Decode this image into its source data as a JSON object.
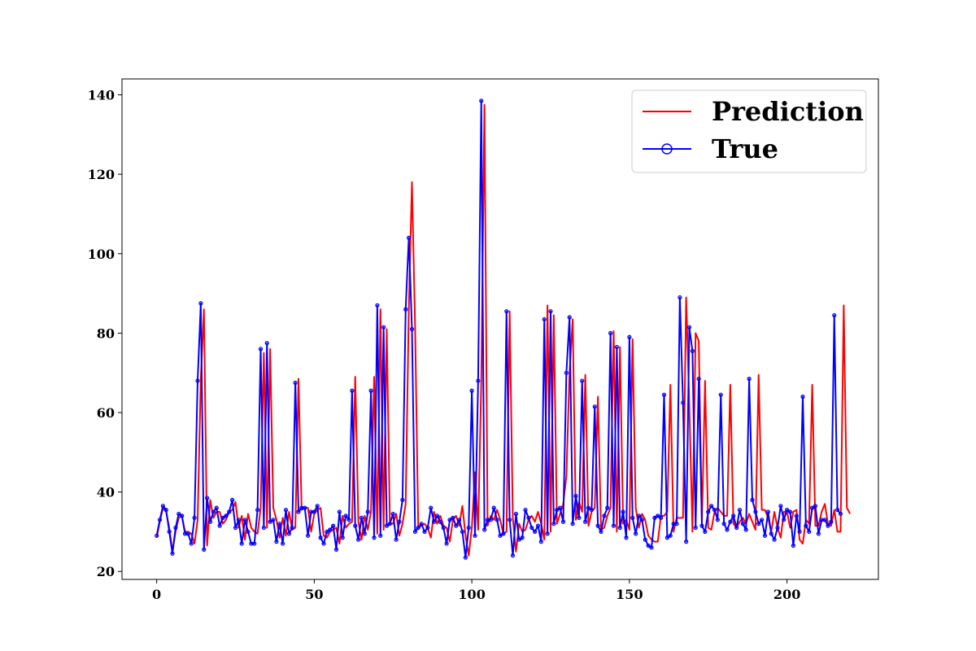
{
  "chart_data": {
    "type": "line",
    "title": "",
    "xlabel": "",
    "ylabel": "",
    "xlim": [
      -11,
      229
    ],
    "ylim": [
      18,
      144
    ],
    "grid": false,
    "legend_position": "top-right",
    "x_ticks": [
      0,
      50,
      100,
      150,
      200
    ],
    "y_ticks": [
      20,
      40,
      60,
      80,
      100,
      120,
      140
    ],
    "series": [
      {
        "name": "Prediction",
        "color": "#ff0000",
        "marker": "none",
        "x_start": 0,
        "values": [
          28.5,
          32.5,
          36,
          35,
          31,
          25,
          30,
          33.5,
          34,
          30,
          30,
          29.5,
          27,
          33,
          68.5,
          86,
          26.5,
          38,
          33.5,
          35,
          35,
          32,
          33,
          35,
          35.5,
          37.5,
          31,
          34,
          28,
          34.5,
          31,
          30,
          29.5,
          36,
          75,
          31,
          76,
          36,
          33,
          28.5,
          33.5,
          29,
          35,
          30.5,
          31,
          68.5,
          35.5,
          36,
          36,
          30,
          34.5,
          35.5,
          36,
          29,
          28.5,
          30,
          30.5,
          31,
          27,
          34,
          31,
          32,
          32.5,
          69,
          32.5,
          28,
          34,
          30.5,
          35,
          69,
          29.5,
          86,
          30.5,
          81,
          32,
          32,
          34.5,
          29,
          32,
          37,
          86,
          118,
          81.5,
          31,
          31.5,
          32,
          31,
          28.5,
          35,
          32,
          34,
          31.5,
          31,
          27.5,
          33,
          34,
          31.5,
          36.5,
          29,
          24,
          31,
          45,
          30.5,
          68,
          137.5,
          31.5,
          34,
          33,
          35.5,
          33,
          29.5,
          30,
          85.5,
          33.5,
          25,
          32,
          30,
          30.5,
          33,
          34,
          32.5,
          35,
          32,
          28,
          87,
          30,
          84.5,
          32,
          34.5,
          37,
          44,
          70,
          83.5,
          33,
          37.5,
          35,
          69.5,
          31.5,
          35,
          36,
          64,
          30.5,
          31,
          34,
          36,
          80.5,
          30,
          76.5,
          32,
          33,
          30.5,
          78.5,
          36,
          31,
          34.5,
          33,
          29,
          28,
          27.5,
          27.5,
          34,
          34,
          35,
          67,
          30,
          33.5,
          33.5,
          33.5,
          89,
          62,
          30,
          80,
          78,
          32,
          68,
          31,
          30.5,
          35,
          36,
          35,
          34,
          34,
          67,
          32,
          31,
          32.5,
          33.5,
          32,
          34.5,
          32.5,
          30.5,
          69.5,
          35.5,
          35.5,
          33.5,
          30,
          35,
          31,
          28.5,
          35,
          35,
          31,
          35,
          35.5,
          28,
          27,
          33,
          32,
          67,
          31.5,
          31.5,
          35,
          37,
          32,
          31.5,
          35.5,
          30,
          30,
          87,
          36,
          34.5
        ]
      },
      {
        "name": "True",
        "color": "#0000ff",
        "marker": "circle",
        "x_start": 0,
        "values": [
          29,
          33,
          36.5,
          35.5,
          30,
          24.5,
          31,
          34.5,
          34,
          29.5,
          29.5,
          27,
          33.5,
          68,
          87.5,
          25.5,
          38.5,
          32.5,
          35,
          36,
          31.5,
          33.5,
          34,
          35,
          38,
          31,
          33,
          27,
          33,
          30,
          27,
          27,
          35.5,
          76,
          31,
          77.5,
          32.5,
          33,
          27.5,
          32,
          27,
          35.5,
          29.5,
          31,
          67.5,
          35,
          36,
          36,
          29,
          35,
          35,
          36.5,
          28.5,
          27,
          30,
          30.5,
          31.5,
          25.5,
          35,
          28.5,
          34,
          33,
          65.5,
          31.5,
          28,
          33.5,
          29.5,
          35,
          65.5,
          28.5,
          87,
          29,
          81.5,
          31.5,
          32,
          34.5,
          28,
          32.5,
          38,
          86,
          104,
          81,
          30,
          31,
          32,
          30,
          31,
          36,
          32.5,
          34,
          32.5,
          31,
          27,
          33,
          33.5,
          31.5,
          33,
          30,
          23.5,
          31,
          65.5,
          29,
          68,
          138.5,
          30.5,
          33,
          33,
          36,
          33,
          29,
          29.5,
          85.5,
          33,
          24,
          34.5,
          28,
          28.5,
          35.5,
          33.5,
          31,
          30,
          31.5,
          27.5,
          83.5,
          29.5,
          85.5,
          32,
          35.5,
          36,
          32.5,
          70,
          84,
          32,
          39,
          33.5,
          68,
          32.5,
          36,
          35.5,
          61.5,
          31.5,
          30,
          34,
          36,
          80,
          31.5,
          76.5,
          31,
          35,
          28.5,
          79,
          33.5,
          29.5,
          34,
          33,
          28,
          26.5,
          26,
          33.5,
          34,
          33.5,
          64.5,
          28.5,
          29,
          32,
          32,
          89,
          62.5,
          27.5,
          81.5,
          75.5,
          31,
          68.5,
          31.5,
          30,
          35,
          36.5,
          35.5,
          33,
          64.5,
          32,
          30.5,
          32.5,
          34,
          31,
          35.5,
          32,
          30.5,
          68.5,
          38,
          35,
          32,
          33,
          29,
          35,
          29.5,
          28,
          31,
          36.5,
          33,
          35.5,
          35,
          26.5,
          34,
          30,
          64,
          31.5,
          30,
          36,
          36.5,
          29.5,
          33,
          33,
          31.5,
          32.5,
          84.5,
          35.5,
          34.5
        ]
      }
    ]
  }
}
